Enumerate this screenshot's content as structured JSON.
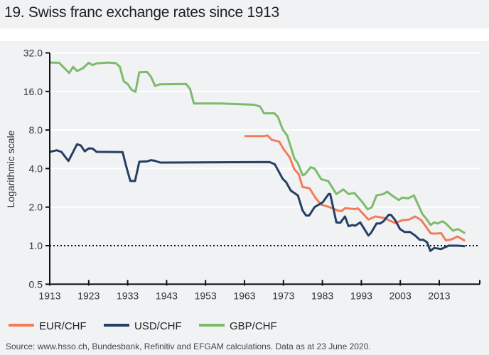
{
  "title": "19. Swiss franc exchange rates since 1913",
  "source": "Source: www.hsso.ch, Bundesbank, Refinitiv and EFGAM calculations. Data as at 23 June 2020.",
  "chart_data": {
    "type": "line",
    "title": "19. Swiss franc exchange rates since 1913",
    "xlabel": "",
    "ylabel": "Logarithmic scale",
    "yscale": "log2",
    "ylim": [
      0.5,
      32
    ],
    "xlim": [
      1913,
      2023
    ],
    "yticks": [
      "0.5",
      "1.0",
      "2.0",
      "4.0",
      "8.0",
      "16.0",
      "32.0"
    ],
    "xticks": [
      "1913",
      "1923",
      "1933",
      "1943",
      "1953",
      "1963",
      "1973",
      "1983",
      "1993",
      "2003",
      "2013"
    ],
    "grid": true,
    "reference_line": 1.0,
    "legend_position": "bottom",
    "series": [
      {
        "name": "EUR/CHF",
        "color": "#f47c5a",
        "points": [
          [
            1963,
            7.16
          ],
          [
            1968,
            7.16
          ],
          [
            1968.9,
            7.25
          ],
          [
            1970,
            6.7
          ],
          [
            1971.9,
            6.5
          ],
          [
            1973,
            5.7
          ],
          [
            1974.6,
            4.9
          ],
          [
            1975.8,
            3.95
          ],
          [
            1976.9,
            3.63
          ],
          [
            1977.9,
            2.87
          ],
          [
            1979.7,
            2.81
          ],
          [
            1981.2,
            2.37
          ],
          [
            1982.7,
            2.09
          ],
          [
            1984.8,
            2.0
          ],
          [
            1987,
            1.88
          ],
          [
            1987.9,
            1.86
          ],
          [
            1988.8,
            1.96
          ],
          [
            1991.5,
            1.93
          ],
          [
            1992.1,
            1.96
          ],
          [
            1994.8,
            1.6
          ],
          [
            1996.6,
            1.69
          ],
          [
            1998.7,
            1.65
          ],
          [
            2001.7,
            1.5
          ],
          [
            2003.5,
            1.58
          ],
          [
            2005.3,
            1.6
          ],
          [
            2006.8,
            1.69
          ],
          [
            2008.4,
            1.58
          ],
          [
            2010.8,
            1.25
          ],
          [
            2011.7,
            1.24
          ],
          [
            2013.5,
            1.25
          ],
          [
            2014.7,
            1.1
          ],
          [
            2016.2,
            1.12
          ],
          [
            2017.7,
            1.18
          ],
          [
            2019.6,
            1.09
          ]
        ]
      },
      {
        "name": "USD/CHF",
        "color": "#253f63",
        "points": [
          [
            1913,
            5.4
          ],
          [
            1914.8,
            5.55
          ],
          [
            1916,
            5.4
          ],
          [
            1917.8,
            4.58
          ],
          [
            1919,
            5.4
          ],
          [
            1920,
            6.2
          ],
          [
            1921,
            6.05
          ],
          [
            1922,
            5.45
          ],
          [
            1923,
            5.75
          ],
          [
            1924,
            5.73
          ],
          [
            1925,
            5.4
          ],
          [
            1931.7,
            5.38
          ],
          [
            1932.6,
            4.2
          ],
          [
            1933.7,
            3.2
          ],
          [
            1934.9,
            3.2
          ],
          [
            1936,
            4.53
          ],
          [
            1938,
            4.55
          ],
          [
            1939,
            4.65
          ],
          [
            1940,
            4.6
          ],
          [
            1941.4,
            4.45
          ],
          [
            1960,
            4.48
          ],
          [
            1969.4,
            4.5
          ],
          [
            1970.8,
            4.32
          ],
          [
            1972.8,
            3.33
          ],
          [
            1973.7,
            3.13
          ],
          [
            1974.9,
            2.69
          ],
          [
            1976.7,
            2.47
          ],
          [
            1977.9,
            1.88
          ],
          [
            1978.8,
            1.72
          ],
          [
            1979.6,
            1.72
          ],
          [
            1981,
            2.0
          ],
          [
            1983.1,
            2.18
          ],
          [
            1984.6,
            2.53
          ],
          [
            1985,
            2.53
          ],
          [
            1986.6,
            1.52
          ],
          [
            1987.6,
            1.51
          ],
          [
            1988.8,
            1.69
          ],
          [
            1989.7,
            1.42
          ],
          [
            1990.8,
            1.45
          ],
          [
            1991.4,
            1.43
          ],
          [
            1992.7,
            1.52
          ],
          [
            1994.8,
            1.2
          ],
          [
            1995.5,
            1.26
          ],
          [
            1996.9,
            1.49
          ],
          [
            1997.8,
            1.49
          ],
          [
            1998.7,
            1.55
          ],
          [
            2000,
            1.74
          ],
          [
            2000.6,
            1.74
          ],
          [
            2001.7,
            1.58
          ],
          [
            2002.9,
            1.35
          ],
          [
            2004.1,
            1.28
          ],
          [
            2005.5,
            1.28
          ],
          [
            2006.8,
            1.2
          ],
          [
            2008,
            1.11
          ],
          [
            2008.9,
            1.11
          ],
          [
            2009.9,
            1.06
          ],
          [
            2010.7,
            0.91
          ],
          [
            2011.7,
            0.96
          ],
          [
            2013.5,
            0.94
          ],
          [
            2015.4,
            1.0
          ],
          [
            2017.7,
            1.0
          ],
          [
            2019.6,
            0.99
          ]
        ]
      },
      {
        "name": "GBP/CHF",
        "color": "#7dbb6b",
        "points": [
          [
            1913,
            26.9
          ],
          [
            1915.4,
            26.8
          ],
          [
            1918,
            22.3
          ],
          [
            1919,
            24.9
          ],
          [
            1920,
            23.1
          ],
          [
            1921.5,
            24.3
          ],
          [
            1923,
            26.8
          ],
          [
            1924,
            25.7
          ],
          [
            1925,
            26.5
          ],
          [
            1928,
            26.9
          ],
          [
            1930,
            26.6
          ],
          [
            1931,
            24.9
          ],
          [
            1932,
            19.2
          ],
          [
            1933,
            18.3
          ],
          [
            1934,
            16.5
          ],
          [
            1935,
            15.9
          ],
          [
            1936,
            22.6
          ],
          [
            1938,
            22.7
          ],
          [
            1939,
            20.8
          ],
          [
            1940,
            17.7
          ],
          [
            1941.3,
            18.2
          ],
          [
            1948,
            18.3
          ],
          [
            1949,
            16.8
          ],
          [
            1950,
            12.9
          ],
          [
            1957,
            12.9
          ],
          [
            1965.5,
            12.6
          ],
          [
            1967,
            12.2
          ],
          [
            1968,
            10.8
          ],
          [
            1970.7,
            10.8
          ],
          [
            1971.6,
            10.1
          ],
          [
            1972.8,
            8.1
          ],
          [
            1974,
            7.2
          ],
          [
            1975.8,
            4.8
          ],
          [
            1976.7,
            4.4
          ],
          [
            1977.9,
            3.55
          ],
          [
            1978.5,
            3.6
          ],
          [
            1980,
            4.1
          ],
          [
            1981,
            4.0
          ],
          [
            1982.7,
            3.3
          ],
          [
            1984.5,
            3.2
          ],
          [
            1986.6,
            2.53
          ],
          [
            1988.4,
            2.75
          ],
          [
            1989.7,
            2.53
          ],
          [
            1991.2,
            2.58
          ],
          [
            1993.3,
            2.18
          ],
          [
            1994.6,
            1.92
          ],
          [
            1995.7,
            2.0
          ],
          [
            1996.9,
            2.47
          ],
          [
            1998.7,
            2.53
          ],
          [
            1999.6,
            2.64
          ],
          [
            2001,
            2.45
          ],
          [
            2002.6,
            2.27
          ],
          [
            2003.5,
            2.37
          ],
          [
            2005,
            2.34
          ],
          [
            2006.5,
            2.47
          ],
          [
            2008.7,
            1.76
          ],
          [
            2009.5,
            1.65
          ],
          [
            2010.8,
            1.45
          ],
          [
            2011.7,
            1.52
          ],
          [
            2012.6,
            1.49
          ],
          [
            2013.8,
            1.55
          ],
          [
            2014.7,
            1.49
          ],
          [
            2016.5,
            1.31
          ],
          [
            2017.8,
            1.35
          ],
          [
            2019.6,
            1.25
          ]
        ]
      }
    ]
  }
}
